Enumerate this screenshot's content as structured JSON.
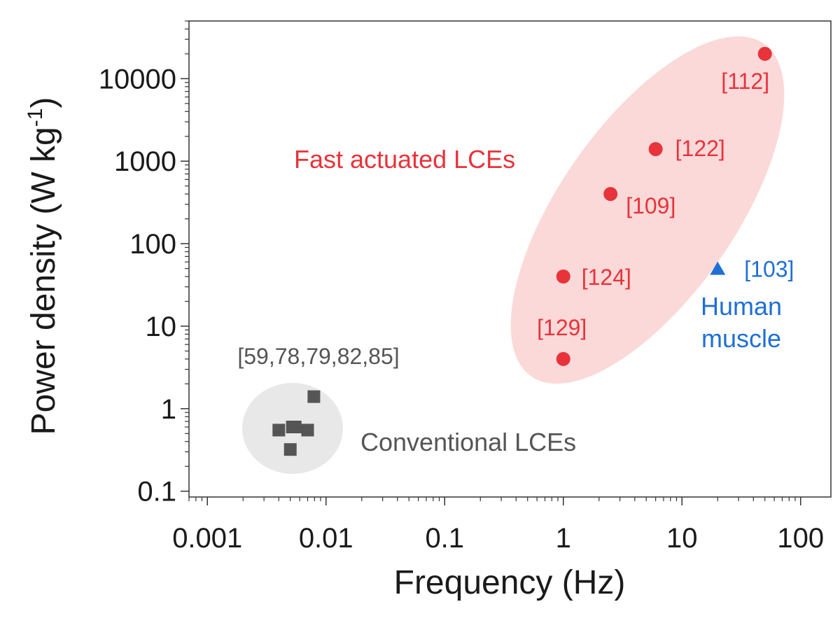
{
  "chart_data": {
    "type": "scatter",
    "xscale": "log",
    "yscale": "log",
    "xlim": [
      0.0007,
      180
    ],
    "ylim": [
      0.085,
      50000
    ],
    "xlabel": "Frequency (Hz)",
    "ylabel_main": "Power density (W kg",
    "ylabel_sup": "-1",
    "ylabel_close": ")",
    "xticks": [
      {
        "value": 0.001,
        "label": "0.001"
      },
      {
        "value": 0.01,
        "label": "0.01"
      },
      {
        "value": 0.1,
        "label": "0.1"
      },
      {
        "value": 1,
        "label": "1"
      },
      {
        "value": 10,
        "label": "10"
      },
      {
        "value": 100,
        "label": "100"
      }
    ],
    "yticks": [
      {
        "value": 0.1,
        "label": "0.1"
      },
      {
        "value": 1,
        "label": "1"
      },
      {
        "value": 10,
        "label": "10"
      },
      {
        "value": 100,
        "label": "100"
      },
      {
        "value": 1000,
        "label": "1000"
      },
      {
        "value": 10000,
        "label": "10000"
      }
    ],
    "series": [
      {
        "name": "Conventional LCEs",
        "marker": "square",
        "color": "#555555",
        "points": [
          {
            "x": 0.004,
            "y": 0.55
          },
          {
            "x": 0.0052,
            "y": 0.6
          },
          {
            "x": 0.0055,
            "y": 0.6
          },
          {
            "x": 0.007,
            "y": 0.55
          },
          {
            "x": 0.0079,
            "y": 1.4
          },
          {
            "x": 0.005,
            "y": 0.32
          }
        ]
      },
      {
        "name": "Fast actuated LCEs",
        "marker": "circle",
        "color": "#e8333a",
        "points": [
          {
            "x": 50,
            "y": 20000,
            "ref": "[112]"
          },
          {
            "x": 6,
            "y": 1400,
            "ref": "[122]"
          },
          {
            "x": 2.5,
            "y": 400,
            "ref": "[109]"
          },
          {
            "x": 1,
            "y": 40,
            "ref": "[124]"
          },
          {
            "x": 1,
            "y": 4,
            "ref": "[129]"
          }
        ]
      },
      {
        "name": "Human muscle",
        "marker": "triangle",
        "color": "#1f6fd6",
        "points": [
          {
            "x": 20,
            "y": 50,
            "ref": "[103]"
          }
        ]
      }
    ],
    "annotations": {
      "conventional_refs": "[59,78,79,82,85]",
      "conventional_label": "Conventional LCEs",
      "fast_label": "Fast actuated LCEs",
      "human_label_line1": "Human",
      "human_label_line2": "muscle"
    },
    "region_fill": {
      "conventional": "#e8e8e8",
      "fast": "#fbd9d9"
    }
  }
}
